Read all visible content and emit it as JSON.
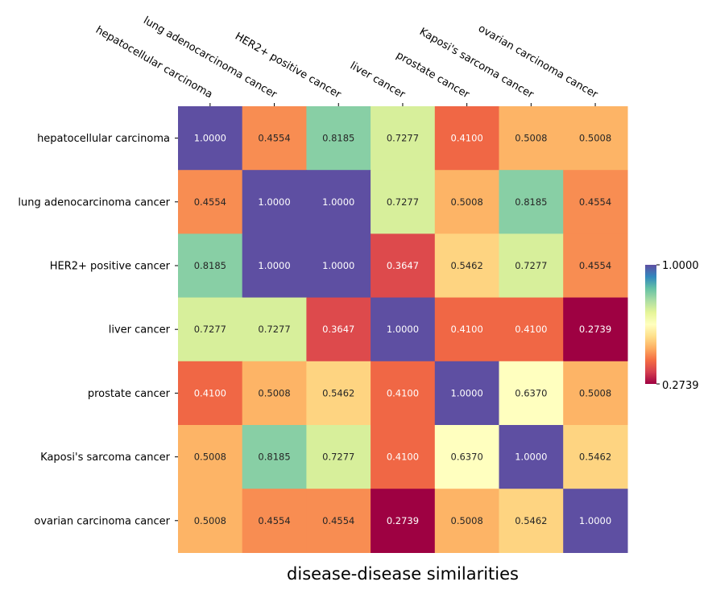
{
  "chart_data": {
    "type": "heatmap",
    "title": "disease-disease similarities",
    "xlabel": "",
    "ylabel": "",
    "labels": [
      "hepatocellular carcinoma",
      "lung adenocarcinoma cancer",
      "HER2+ positive cancer",
      "liver cancer",
      "prostate cancer",
      "Kaposi's sarcoma cancer",
      "ovarian carcinoma cancer"
    ],
    "values": [
      [
        1.0,
        0.4554,
        0.8185,
        0.7277,
        0.41,
        0.5008,
        0.5008
      ],
      [
        0.4554,
        1.0,
        1.0,
        0.7277,
        0.5008,
        0.8185,
        0.4554
      ],
      [
        0.8185,
        1.0,
        1.0,
        0.3647,
        0.5462,
        0.7277,
        0.4554
      ],
      [
        0.7277,
        0.7277,
        0.3647,
        1.0,
        0.41,
        0.41,
        0.2739
      ],
      [
        0.41,
        0.5008,
        0.5462,
        0.41,
        1.0,
        0.637,
        0.5008
      ],
      [
        0.5008,
        0.8185,
        0.7277,
        0.41,
        0.637,
        1.0,
        0.5462
      ],
      [
        0.5008,
        0.4554,
        0.4554,
        0.2739,
        0.5008,
        0.5462,
        1.0
      ]
    ],
    "value_format": "0.0000",
    "colormap": "Spectral",
    "x_tick_position": "top",
    "colorbar": {
      "min": 0.2739,
      "max": 1.0,
      "tick_labels": [
        "1.0000",
        "0.2739"
      ],
      "position": "right"
    }
  }
}
